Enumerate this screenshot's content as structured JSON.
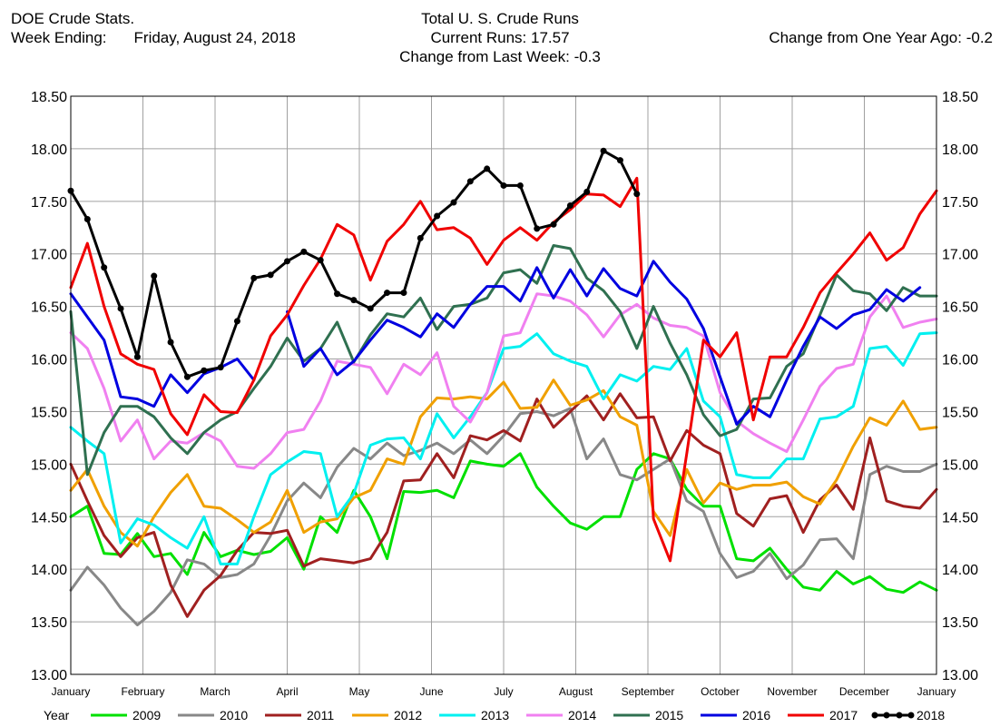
{
  "header": {
    "source": "DOE Crude Stats.",
    "week_label": "Week Ending:",
    "week_value": "Friday, August 24, 2018",
    "title": "Total U. S. Crude Runs",
    "current_runs": "Current Runs: 17.57",
    "change_week": "Change from Last Week:  -0.3",
    "change_year": "Change from One Year Ago:  -0.2"
  },
  "chart_data": {
    "type": "line",
    "title": "Total U. S. Crude Runs",
    "xlabel": "",
    "ylabel": "",
    "ylim": [
      13.0,
      18.5
    ],
    "yticks": [
      "13.00",
      "13.50",
      "14.00",
      "14.50",
      "15.00",
      "15.50",
      "16.00",
      "16.50",
      "17.00",
      "17.50",
      "18.00",
      "18.50"
    ],
    "x_range_weeks": [
      0,
      52
    ],
    "months": [
      "January",
      "February",
      "March",
      "April",
      "May",
      "June",
      "July",
      "August",
      "September",
      "October",
      "November",
      "December",
      "January"
    ],
    "grid": true,
    "legend_position": "bottom",
    "legend_label": "Year",
    "series": [
      {
        "name": "2009",
        "color": "#00e000",
        "values": [
          14.5,
          14.6,
          14.15,
          14.14,
          14.34,
          14.12,
          14.15,
          13.95,
          14.35,
          14.12,
          14.18,
          14.14,
          14.17,
          14.3,
          14.0,
          14.5,
          14.35,
          14.75,
          14.5,
          14.1,
          14.74,
          14.73,
          14.75,
          14.68,
          15.03,
          15.0,
          14.98,
          15.1,
          14.78,
          14.6,
          14.44,
          14.38,
          14.5,
          14.5,
          14.95,
          15.1,
          15.05,
          14.76,
          14.6,
          14.6,
          14.1,
          14.08,
          14.2,
          14.0,
          13.83,
          13.8,
          13.98,
          13.86,
          13.93,
          13.81,
          13.78,
          13.88,
          13.8
        ]
      },
      {
        "name": "2010",
        "color": "#888888",
        "values": [
          13.8,
          14.02,
          13.85,
          13.63,
          13.47,
          13.6,
          13.78,
          14.09,
          14.05,
          13.92,
          13.95,
          14.05,
          14.32,
          14.65,
          14.82,
          14.68,
          14.97,
          15.15,
          15.05,
          15.2,
          15.08,
          15.13,
          15.2,
          15.1,
          15.23,
          15.1,
          15.27,
          15.48,
          15.5,
          15.46,
          15.53,
          15.05,
          15.24,
          14.9,
          14.85,
          14.95,
          15.05,
          14.65,
          14.55,
          14.15,
          13.92,
          13.98,
          14.15,
          13.91,
          14.04,
          14.28,
          14.29,
          14.1,
          14.9,
          14.98,
          14.93,
          14.93,
          15.0
        ]
      },
      {
        "name": "2011",
        "color": "#a02020",
        "values": [
          15.0,
          14.65,
          14.32,
          14.12,
          14.3,
          14.35,
          13.85,
          13.55,
          13.8,
          13.94,
          14.18,
          14.35,
          14.34,
          14.37,
          14.03,
          14.1,
          14.08,
          14.06,
          14.1,
          14.35,
          14.84,
          14.85,
          15.1,
          14.87,
          15.27,
          15.23,
          15.32,
          15.22,
          15.62,
          15.35,
          15.5,
          15.65,
          15.42,
          15.67,
          15.44,
          15.45,
          15.03,
          15.32,
          15.18,
          15.1,
          14.53,
          14.41,
          14.67,
          14.7,
          14.35,
          14.66,
          14.8,
          14.57,
          15.25,
          14.65,
          14.6,
          14.58,
          14.76
        ]
      },
      {
        "name": "2012",
        "color": "#f0a000",
        "values": [
          14.75,
          14.95,
          14.6,
          14.35,
          14.22,
          14.5,
          14.73,
          14.9,
          14.6,
          14.58,
          14.47,
          14.35,
          14.45,
          14.75,
          14.35,
          14.45,
          14.48,
          14.68,
          14.75,
          15.05,
          15.0,
          15.45,
          15.63,
          15.62,
          15.64,
          15.62,
          15.78,
          15.53,
          15.54,
          15.8,
          15.56,
          15.61,
          15.7,
          15.45,
          15.37,
          14.55,
          14.32,
          14.95,
          14.63,
          14.82,
          14.76,
          14.8,
          14.8,
          14.83,
          14.69,
          14.62,
          14.85,
          15.17,
          15.44,
          15.37,
          15.6,
          15.33,
          15.35
        ]
      },
      {
        "name": "2013",
        "color": "#00f0f0",
        "values": [
          15.35,
          15.22,
          15.1,
          14.25,
          14.48,
          14.42,
          14.3,
          14.2,
          14.5,
          14.05,
          14.05,
          14.5,
          14.9,
          15.02,
          15.12,
          15.1,
          14.5,
          14.72,
          15.18,
          15.24,
          15.25,
          15.05,
          15.48,
          15.25,
          15.45,
          15.68,
          16.1,
          16.12,
          16.24,
          16.05,
          15.98,
          15.93,
          15.62,
          15.85,
          15.79,
          15.93,
          15.9,
          16.1,
          15.6,
          15.45,
          14.9,
          14.87,
          14.87,
          15.05,
          15.05,
          15.43,
          15.45,
          15.55,
          16.1,
          16.12,
          15.94,
          16.24,
          16.25
        ]
      },
      {
        "name": "2014",
        "color": "#f080f0",
        "values": [
          16.25,
          16.1,
          15.72,
          15.22,
          15.42,
          15.05,
          15.22,
          15.2,
          15.3,
          15.22,
          14.98,
          14.96,
          15.1,
          15.3,
          15.33,
          15.6,
          15.98,
          15.95,
          15.92,
          15.67,
          15.95,
          15.85,
          16.06,
          15.55,
          15.4,
          15.68,
          16.22,
          16.25,
          16.62,
          16.6,
          16.55,
          16.42,
          16.21,
          16.42,
          16.52,
          16.39,
          16.32,
          16.3,
          16.22,
          15.68,
          15.41,
          15.29,
          15.2,
          15.12,
          15.42,
          15.74,
          15.91,
          15.95,
          16.4,
          16.6,
          16.3,
          16.35,
          16.38
        ]
      },
      {
        "name": "2015",
        "color": "#2f7050",
        "values": [
          16.45,
          14.9,
          15.3,
          15.55,
          15.55,
          15.45,
          15.25,
          15.1,
          15.3,
          15.42,
          15.5,
          15.72,
          15.93,
          16.2,
          15.98,
          16.1,
          16.35,
          15.97,
          16.23,
          16.43,
          16.4,
          16.58,
          16.28,
          16.5,
          16.52,
          16.58,
          16.82,
          16.85,
          16.72,
          17.08,
          17.05,
          16.77,
          16.65,
          16.45,
          16.1,
          16.5,
          16.15,
          15.85,
          15.47,
          15.27,
          15.33,
          15.62,
          15.63,
          15.93,
          16.05,
          16.42,
          16.8,
          16.65,
          16.62,
          16.46,
          16.68,
          16.6,
          16.6
        ]
      },
      {
        "name": "2016",
        "color": "#0000e0",
        "values": [
          16.62,
          16.4,
          16.18,
          15.64,
          15.62,
          15.55,
          15.85,
          15.68,
          15.86,
          15.92,
          16.0,
          15.8,
          null,
          16.45,
          15.93,
          16.1,
          15.85,
          15.98,
          16.18,
          16.37,
          16.3,
          16.21,
          16.43,
          16.3,
          16.52,
          16.69,
          16.69,
          16.55,
          16.87,
          16.58,
          16.85,
          16.6,
          16.86,
          16.67,
          16.6,
          16.93,
          16.73,
          16.57,
          16.29,
          15.83,
          15.38,
          15.55,
          15.45,
          15.8,
          16.12,
          16.4,
          16.29,
          16.42,
          16.47,
          16.66,
          16.55,
          16.68,
          null
        ]
      },
      {
        "name": "2017",
        "color": "#f00000",
        "values": [
          16.68,
          17.1,
          16.5,
          16.05,
          15.95,
          15.9,
          15.48,
          15.28,
          15.66,
          15.5,
          15.49,
          15.8,
          16.22,
          16.42,
          16.7,
          16.95,
          17.28,
          17.18,
          16.75,
          17.12,
          17.28,
          17.5,
          17.23,
          17.25,
          17.15,
          16.9,
          17.13,
          17.25,
          17.13,
          17.3,
          17.42,
          17.57,
          17.56,
          17.45,
          17.72,
          14.48,
          14.08,
          15.1,
          16.18,
          16.02,
          16.25,
          15.42,
          16.02,
          16.02,
          16.3,
          16.63,
          16.82,
          17.0,
          17.2,
          16.94,
          17.06,
          17.38,
          17.6
        ]
      },
      {
        "name": "2018",
        "color": "#000000",
        "values": [
          17.6,
          17.33,
          16.87,
          16.48,
          16.02,
          16.79,
          16.16,
          15.83,
          15.89,
          15.92,
          16.36,
          16.77,
          16.8,
          16.93,
          17.02,
          16.94,
          16.62,
          16.56,
          16.48,
          16.63,
          16.63,
          17.15,
          17.36,
          17.49,
          17.69,
          17.81,
          17.65,
          17.65,
          17.24,
          17.28,
          17.46,
          17.59,
          17.98,
          17.89,
          17.57
        ]
      }
    ]
  }
}
